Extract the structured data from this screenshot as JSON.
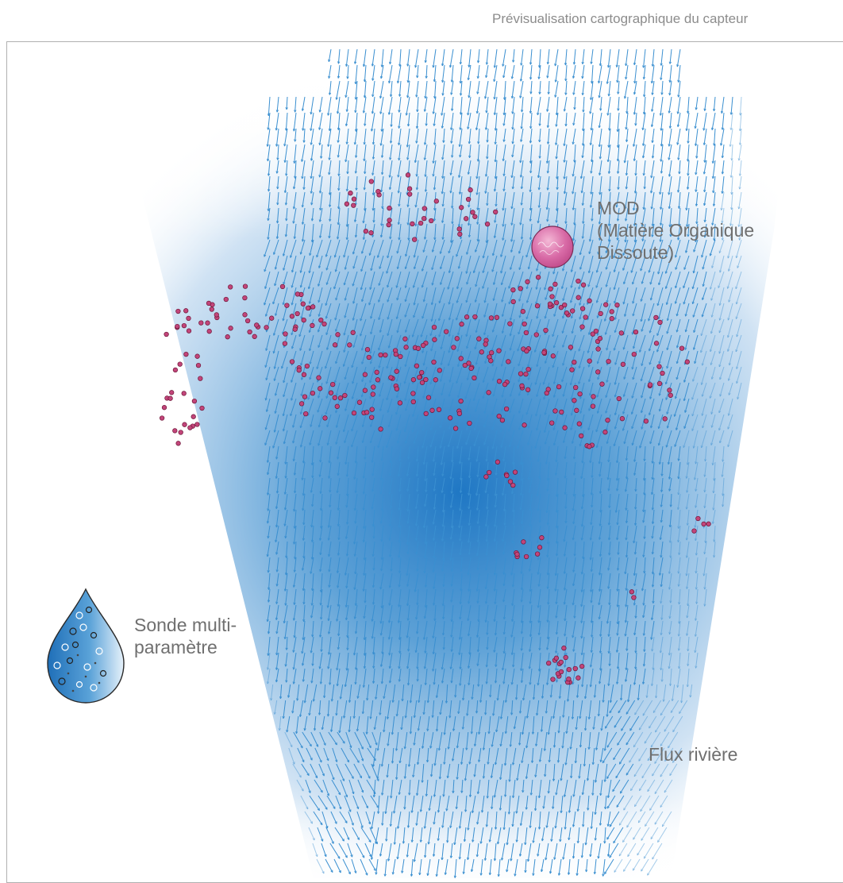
{
  "header": {
    "title": "Prévisualisation cartographique du capteur"
  },
  "labels": {
    "mod": "MOD\n(Matière Organique\nDissoute)",
    "probe": "Sonde multi-\nparamètre",
    "flow": "Flux rivière"
  },
  "colors": {
    "arrow": "#3a8fd0",
    "particle_fill": "#c2457a",
    "particle_stroke": "#6e1638",
    "field_core": "#1f77c4",
    "frame": "#b0b0b0",
    "label": "#6f6f6f"
  },
  "icons": {
    "mod": "pink-sphere-icon",
    "probe": "water-drop-icon"
  }
}
